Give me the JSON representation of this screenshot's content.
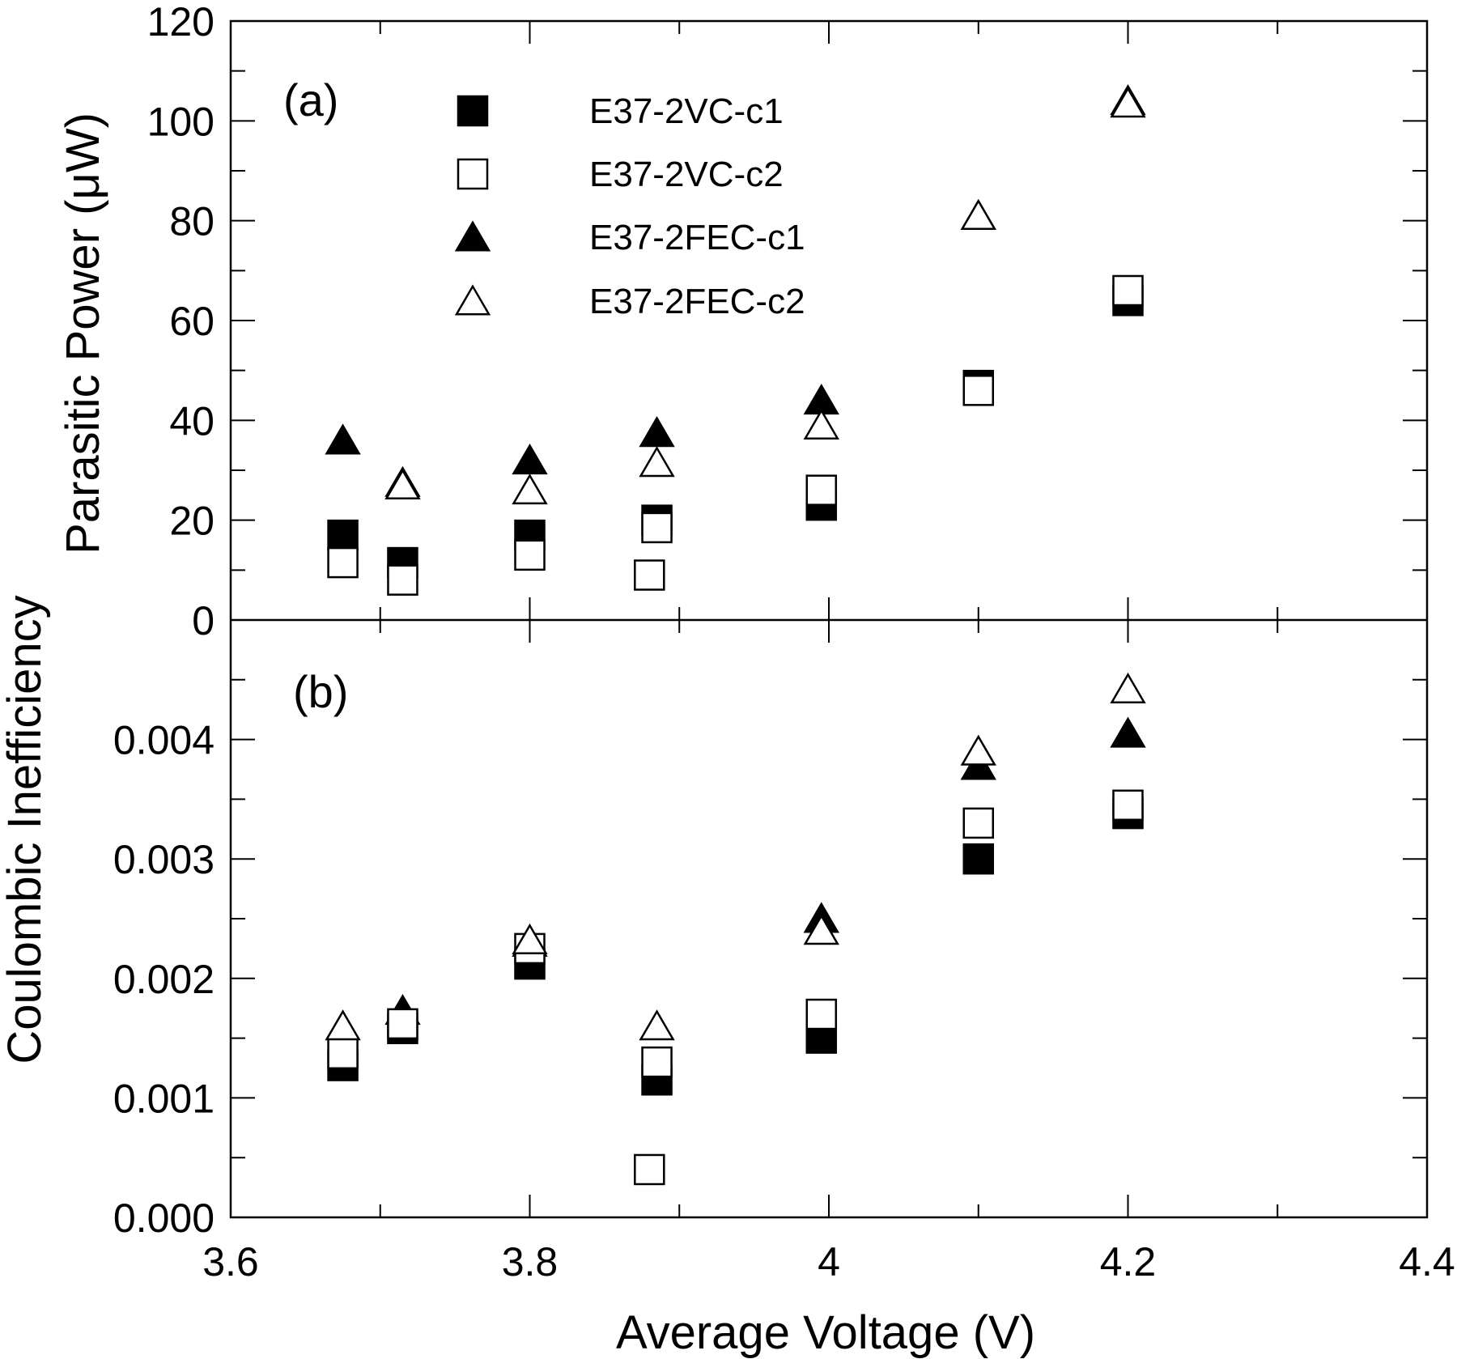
{
  "chart_data": {
    "type": "scatter",
    "xlabel": "Average Voltage (V)",
    "xlim": [
      3.6,
      4.4
    ],
    "xticks": [
      "3.6",
      "3.8",
      "4",
      "4.2",
      "4.4"
    ],
    "legend": {
      "placement": "top-center of panel (a)",
      "entries": [
        {
          "name": "E37-2VC-c1",
          "marker": "square",
          "filled": true
        },
        {
          "name": "E37-2VC-c2",
          "marker": "square",
          "filled": false
        },
        {
          "name": "E37-2FEC-c1",
          "marker": "triangle",
          "filled": true
        },
        {
          "name": "E37-2FEC-c2",
          "marker": "triangle",
          "filled": false
        }
      ]
    },
    "panels": [
      {
        "label": "(a)",
        "ylabel": "Parasitic Power (μW)",
        "ylim": [
          0,
          120
        ],
        "yticks": [
          "0",
          "20",
          "40",
          "60",
          "80",
          "100",
          "120"
        ],
        "series": [
          {
            "name": "E37-2VC-c1",
            "points": [
              [
                3.675,
                17
              ],
              [
                3.715,
                11.5
              ],
              [
                3.8,
                17
              ],
              [
                3.885,
                20
              ],
              [
                3.995,
                23
              ],
              [
                4.1,
                47
              ],
              [
                4.2,
                64
              ]
            ]
          },
          {
            "name": "E37-2VC-c2",
            "points": [
              [
                3.675,
                11.5
              ],
              [
                3.715,
                8
              ],
              [
                3.8,
                13
              ],
              [
                3.88,
                9
              ],
              [
                3.885,
                18.5
              ],
              [
                3.995,
                26
              ],
              [
                4.1,
                46
              ],
              [
                4.2,
                66
              ]
            ]
          },
          {
            "name": "E37-2FEC-c1",
            "points": [
              [
                3.675,
                36
              ],
              [
                3.715,
                27.5
              ],
              [
                3.8,
                32
              ],
              [
                3.885,
                37.5
              ],
              [
                3.995,
                44
              ],
              [
                4.1,
                81
              ],
              [
                4.2,
                104
              ]
            ]
          },
          {
            "name": "E37-2FEC-c2",
            "points": [
              [
                3.715,
                27
              ],
              [
                3.8,
                26
              ],
              [
                3.885,
                31.5
              ],
              [
                3.995,
                39
              ],
              [
                4.1,
                81
              ],
              [
                4.2,
                103.5
              ]
            ]
          }
        ]
      },
      {
        "label": "(b)",
        "ylabel": "Coulombic Inefficiency",
        "ylim": [
          0.0,
          0.005
        ],
        "yticks": [
          "0.000",
          "0.001",
          "0.002",
          "0.003",
          "0.004"
        ],
        "series": [
          {
            "name": "E37-2VC-c1",
            "points": [
              [
                3.675,
                0.00127
              ],
              [
                3.715,
                0.00158
              ],
              [
                3.8,
                0.00212
              ],
              [
                3.885,
                0.00115
              ],
              [
                3.995,
                0.0015
              ],
              [
                4.1,
                0.003
              ],
              [
                4.2,
                0.00338
              ]
            ]
          },
          {
            "name": "E37-2VC-c2",
            "points": [
              [
                3.675,
                0.00137
              ],
              [
                3.715,
                0.00162
              ],
              [
                3.8,
                0.00225
              ],
              [
                3.88,
                0.0004
              ],
              [
                3.885,
                0.0013
              ],
              [
                3.995,
                0.0017
              ],
              [
                4.1,
                0.0033
              ],
              [
                4.2,
                0.00345
              ]
            ]
          },
          {
            "name": "E37-2FEC-c1",
            "points": [
              [
                3.715,
                0.00173
              ],
              [
                3.8,
                0.0023
              ],
              [
                3.995,
                0.0025
              ],
              [
                4.1,
                0.00378
              ],
              [
                4.2,
                0.00405
              ]
            ]
          },
          {
            "name": "E37-2FEC-c2",
            "points": [
              [
                3.675,
                0.0016
              ],
              [
                3.8,
                0.00232
              ],
              [
                3.885,
                0.0016
              ],
              [
                3.995,
                0.0024
              ],
              [
                4.1,
                0.0039
              ],
              [
                4.2,
                0.00442
              ]
            ]
          }
        ]
      }
    ]
  }
}
